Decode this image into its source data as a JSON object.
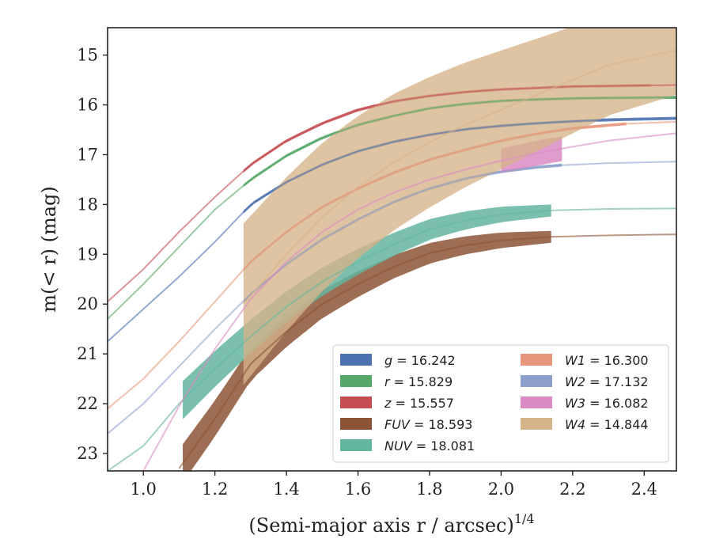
{
  "chart_data": {
    "type": "line",
    "xlabel": "(Semi-major axis r / arcsec)",
    "xlabel_exponent": "1/4",
    "ylabel": "m(< r) (mag)",
    "xlim": [
      0.9,
      2.49
    ],
    "ylim": [
      23.35,
      14.45
    ],
    "y_inverted": true,
    "grid": false,
    "legend_placement": "lower-right",
    "x_ticks": [
      "1.0",
      "1.2",
      "1.4",
      "1.6",
      "1.8",
      "2.0",
      "2.2",
      "2.4"
    ],
    "y_ticks": [
      "15",
      "16",
      "17",
      "18",
      "19",
      "20",
      "21",
      "22",
      "23"
    ],
    "series": [
      {
        "name": "g",
        "label_value": "16.242",
        "color": "#4c72b0",
        "x": [
          0.9,
          1.0,
          1.1,
          1.2,
          1.3,
          1.4,
          1.5,
          1.6,
          1.7,
          1.8,
          1.9,
          2.0,
          2.1,
          2.2,
          2.3,
          2.49
        ],
        "y": [
          20.75,
          20.1,
          19.45,
          18.75,
          18.0,
          17.55,
          17.2,
          16.93,
          16.74,
          16.6,
          16.49,
          16.42,
          16.37,
          16.33,
          16.3,
          16.27
        ],
        "band_x": [
          1.28,
          2.49
        ]
      },
      {
        "name": "r",
        "label_value": "15.829",
        "color": "#55a868",
        "x": [
          0.9,
          1.0,
          1.1,
          1.2,
          1.3,
          1.4,
          1.5,
          1.6,
          1.7,
          1.8,
          1.9,
          2.0,
          2.1,
          2.2,
          2.3,
          2.49
        ],
        "y": [
          20.3,
          19.6,
          18.85,
          18.1,
          17.5,
          17.02,
          16.66,
          16.4,
          16.22,
          16.07,
          15.98,
          15.92,
          15.89,
          15.87,
          15.86,
          15.85
        ],
        "band_x": [
          1.28,
          2.49
        ]
      },
      {
        "name": "z",
        "label_value": "15.557",
        "color": "#c44e52",
        "x": [
          0.9,
          1.0,
          1.1,
          1.2,
          1.3,
          1.4,
          1.5,
          1.6,
          1.7,
          1.8,
          1.9,
          2.0,
          2.1,
          2.2,
          2.3,
          2.49
        ],
        "y": [
          19.95,
          19.3,
          18.55,
          17.85,
          17.2,
          16.72,
          16.37,
          16.1,
          15.93,
          15.82,
          15.74,
          15.69,
          15.66,
          15.63,
          15.62,
          15.6
        ],
        "band_x": [
          1.28,
          2.42
        ]
      },
      {
        "name": "FUV",
        "label_value": "18.593",
        "color": "#8c5436",
        "x": [
          1.1,
          1.2,
          1.3,
          1.4,
          1.5,
          1.6,
          1.7,
          1.8,
          1.9,
          2.0,
          2.14,
          2.3,
          2.49
        ],
        "y": [
          23.3,
          22.3,
          21.2,
          20.55,
          20.0,
          19.6,
          19.25,
          18.98,
          18.82,
          18.72,
          18.65,
          18.62,
          18.6
        ],
        "band_x": [
          1.11,
          2.14
        ]
      },
      {
        "name": "NUV",
        "label_value": "18.081",
        "color": "#64b5a0",
        "x": [
          0.9,
          1.0,
          1.1,
          1.2,
          1.3,
          1.4,
          1.5,
          1.6,
          1.7,
          1.8,
          1.9,
          2.0,
          2.14,
          2.3,
          2.49
        ],
        "y": [
          23.35,
          22.85,
          22.0,
          21.3,
          20.65,
          20.05,
          19.55,
          19.15,
          18.8,
          18.5,
          18.32,
          18.2,
          18.12,
          18.09,
          18.08
        ],
        "band_x": [
          1.11,
          2.14
        ]
      },
      {
        "name": "W1",
        "label_value": "16.300",
        "color": "#e8967a",
        "x": [
          0.9,
          1.0,
          1.1,
          1.2,
          1.3,
          1.4,
          1.5,
          1.6,
          1.7,
          1.8,
          1.9,
          2.0,
          2.1,
          2.2,
          2.35,
          2.49
        ],
        "y": [
          22.1,
          21.5,
          20.75,
          19.95,
          19.15,
          18.55,
          18.05,
          17.68,
          17.36,
          17.1,
          16.9,
          16.72,
          16.58,
          16.47,
          16.38,
          16.34
        ],
        "band_x": [
          1.28,
          2.35
        ]
      },
      {
        "name": "W2",
        "label_value": "17.132",
        "color": "#8da0cb",
        "x": [
          0.9,
          1.0,
          1.1,
          1.2,
          1.3,
          1.4,
          1.5,
          1.6,
          1.7,
          1.8,
          1.9,
          2.0,
          2.1,
          2.17,
          2.3,
          2.49
        ],
        "y": [
          22.6,
          22.0,
          21.25,
          20.5,
          19.8,
          19.2,
          18.7,
          18.3,
          17.95,
          17.68,
          17.48,
          17.34,
          17.25,
          17.21,
          17.17,
          17.14
        ],
        "band_x": [
          1.28,
          2.17
        ]
      },
      {
        "name": "W3",
        "label_value": "16.082",
        "color": "#da8bc3",
        "x": [
          1.0,
          1.1,
          1.2,
          1.3,
          1.4,
          1.5,
          1.6,
          1.7,
          1.8,
          1.9,
          2.0,
          2.1,
          2.2,
          2.3,
          2.49
        ],
        "y": [
          23.35,
          22.05,
          20.9,
          19.9,
          19.15,
          18.55,
          18.1,
          17.76,
          17.5,
          17.3,
          17.12,
          16.97,
          16.84,
          16.72,
          16.57
        ],
        "band_x": [
          2.0,
          2.17
        ]
      },
      {
        "name": "W4",
        "label_value": "14.844",
        "color": "#d6b48a",
        "x": [
          1.28,
          1.4,
          1.5,
          1.6,
          1.7,
          1.8,
          1.9,
          2.0,
          2.1,
          2.2,
          2.3,
          2.49
        ],
        "y": [
          20.0,
          19.0,
          18.25,
          17.65,
          17.15,
          16.75,
          16.4,
          16.1,
          15.8,
          15.5,
          15.2,
          14.9
        ],
        "band_x": [
          1.28,
          2.49
        ]
      }
    ],
    "legend": {
      "columns": [
        [
          {
            "symbol": "g",
            "value": "16.242",
            "color": "#4c72b0"
          },
          {
            "symbol": "r",
            "value": "15.829",
            "color": "#55a868"
          },
          {
            "symbol": "z",
            "value": "15.557",
            "color": "#c44e52"
          },
          {
            "symbol": "FUV",
            "value": "18.593",
            "color": "#8c5436"
          },
          {
            "symbol": "NUV",
            "value": "18.081",
            "color": "#64b5a0"
          }
        ],
        [
          {
            "symbol": "W1",
            "value": "16.300",
            "color": "#e8967a"
          },
          {
            "symbol": "W2",
            "value": "17.132",
            "color": "#8da0cb"
          },
          {
            "symbol": "W3",
            "value": "16.082",
            "color": "#da8bc3"
          },
          {
            "symbol": "W4",
            "value": "14.844",
            "color": "#d6b48a"
          }
        ]
      ]
    }
  }
}
